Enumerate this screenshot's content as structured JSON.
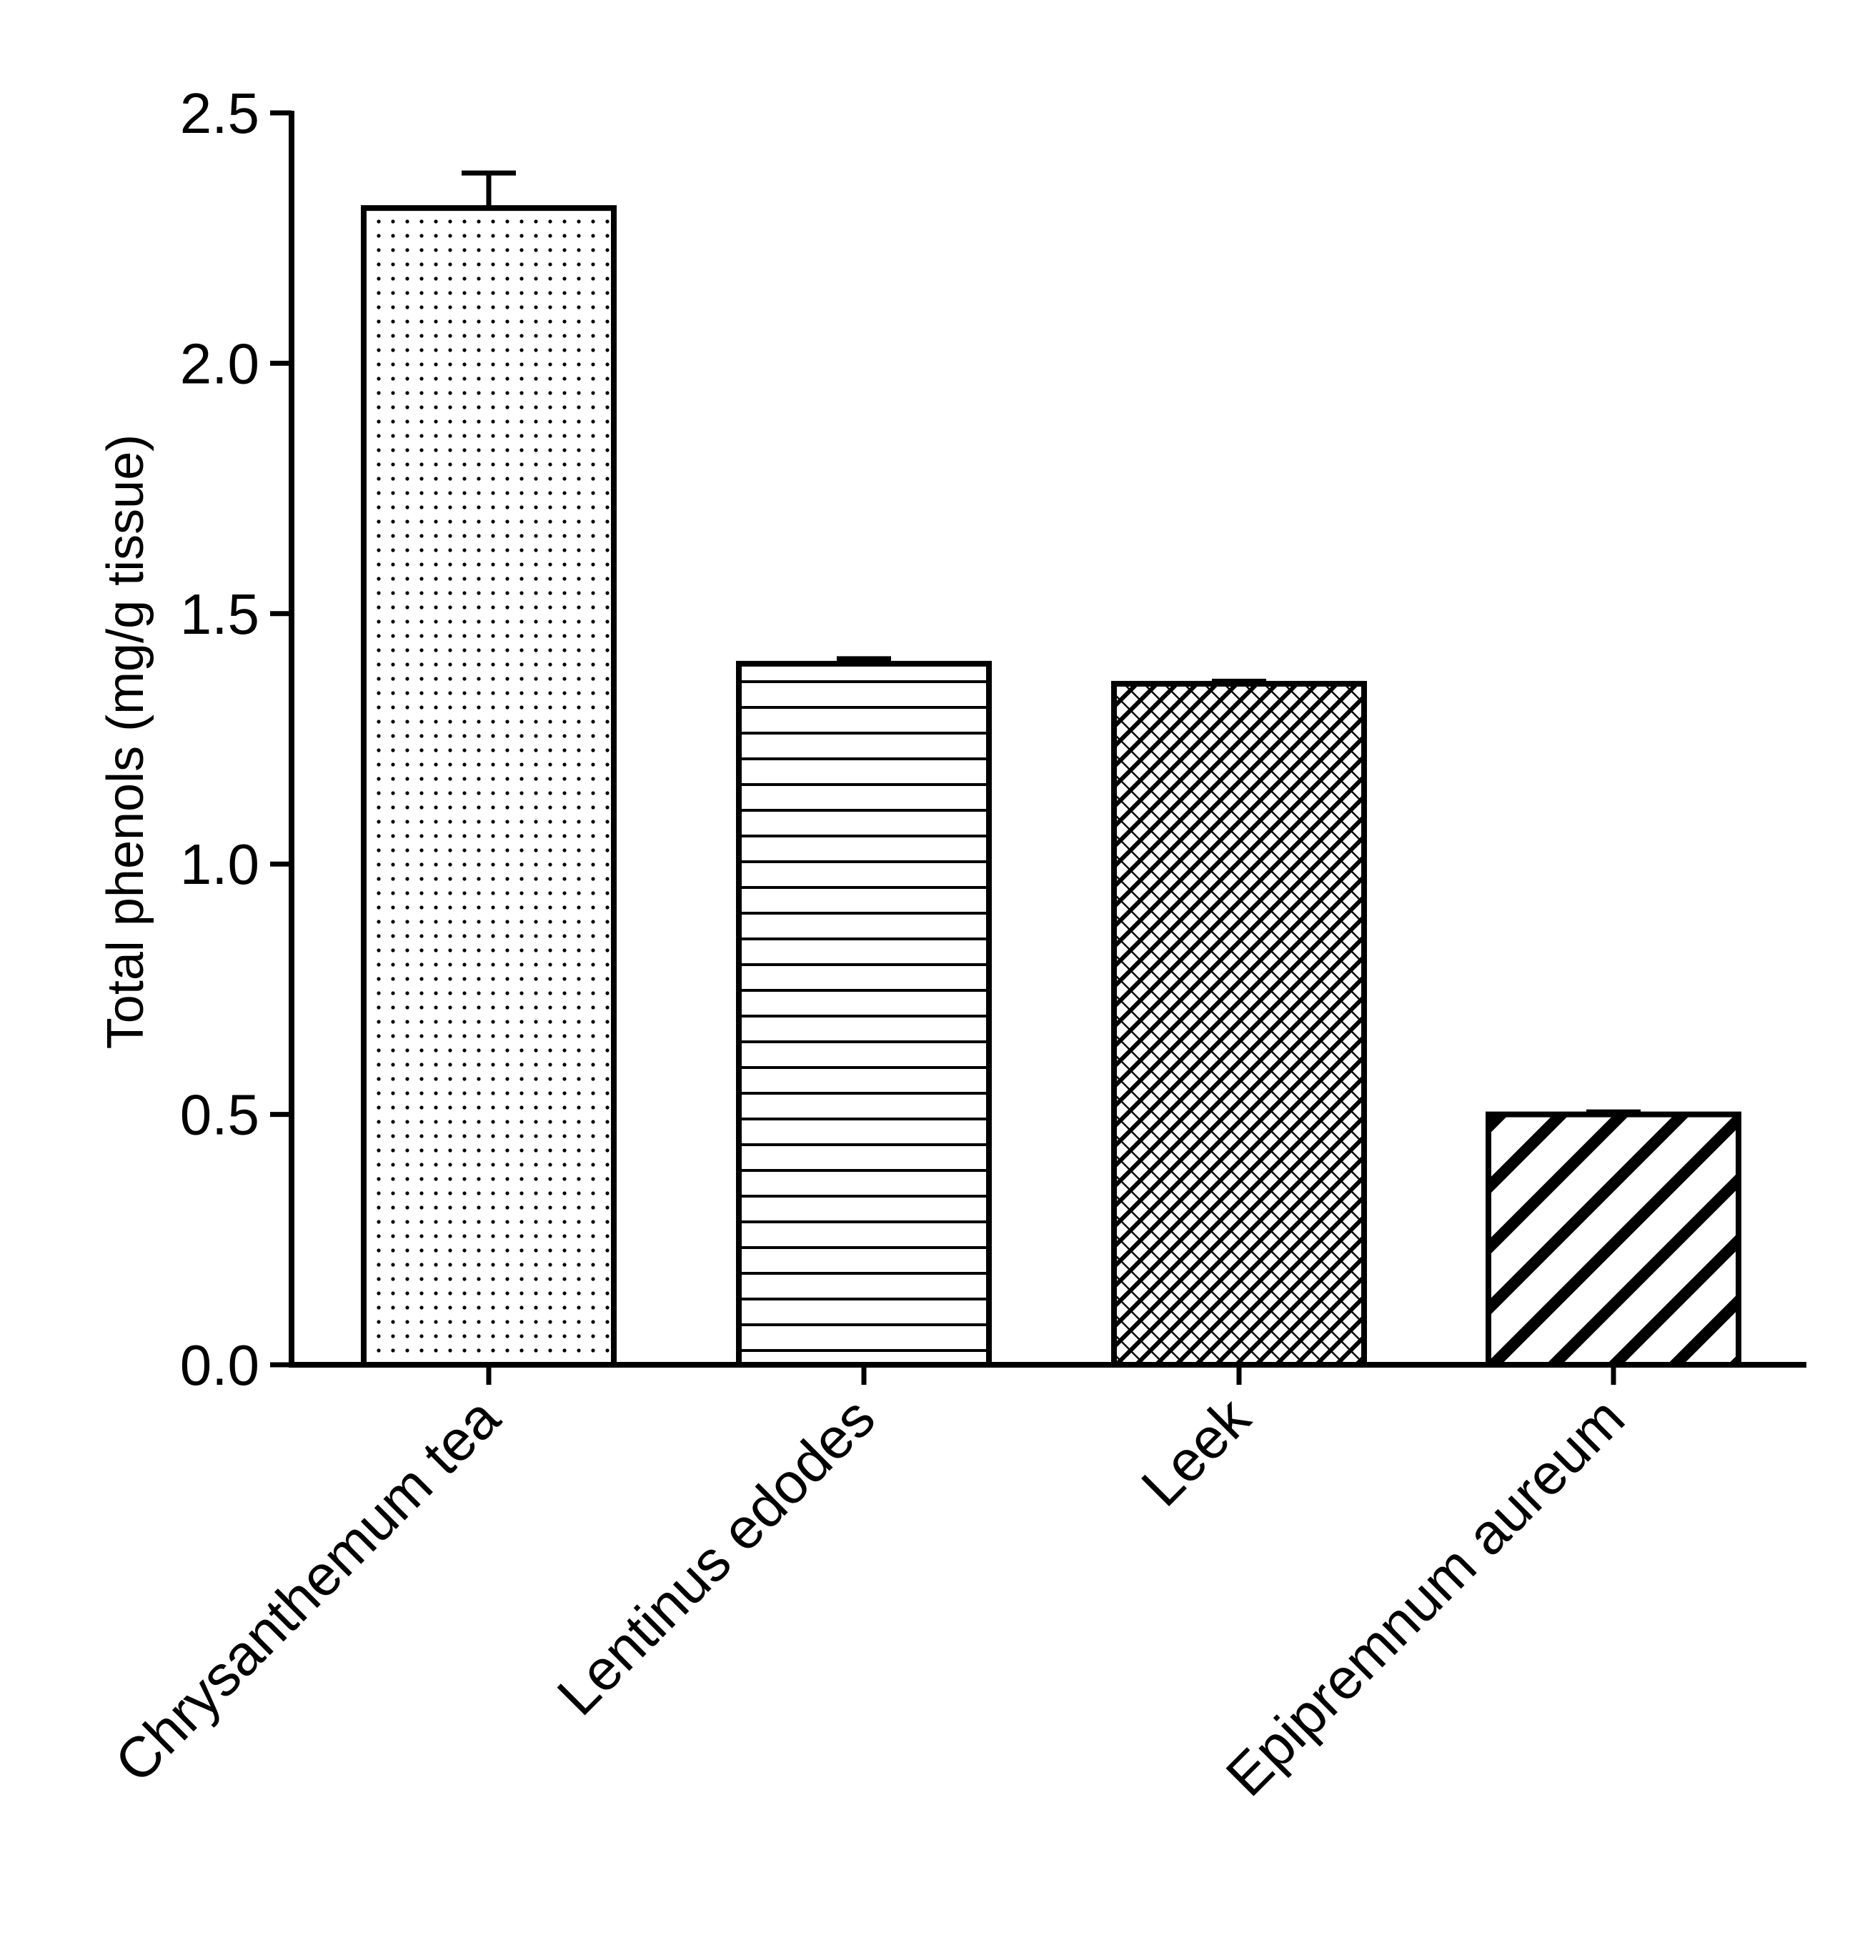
{
  "chart_data": {
    "type": "bar",
    "title": "",
    "xlabel": "",
    "ylabel": "Total phenols (mg/g tissue)",
    "ylim": [
      0,
      2.5
    ],
    "yticks": [
      "0.0",
      "0.5",
      "1.0",
      "1.5",
      "2.0",
      "2.5"
    ],
    "categories": [
      "Chrysanthemum tea",
      "Lentinus edodes",
      "Leek",
      "Epipremnum aureum"
    ],
    "values": [
      2.31,
      1.4,
      1.36,
      0.5
    ],
    "errors": [
      0.07,
      0.01,
      0.005,
      0.005
    ],
    "fill_patterns": [
      "dots",
      "horizontal-lines",
      "crosshatch",
      "diagonal-stripes"
    ],
    "grid": false,
    "legend": "none"
  }
}
